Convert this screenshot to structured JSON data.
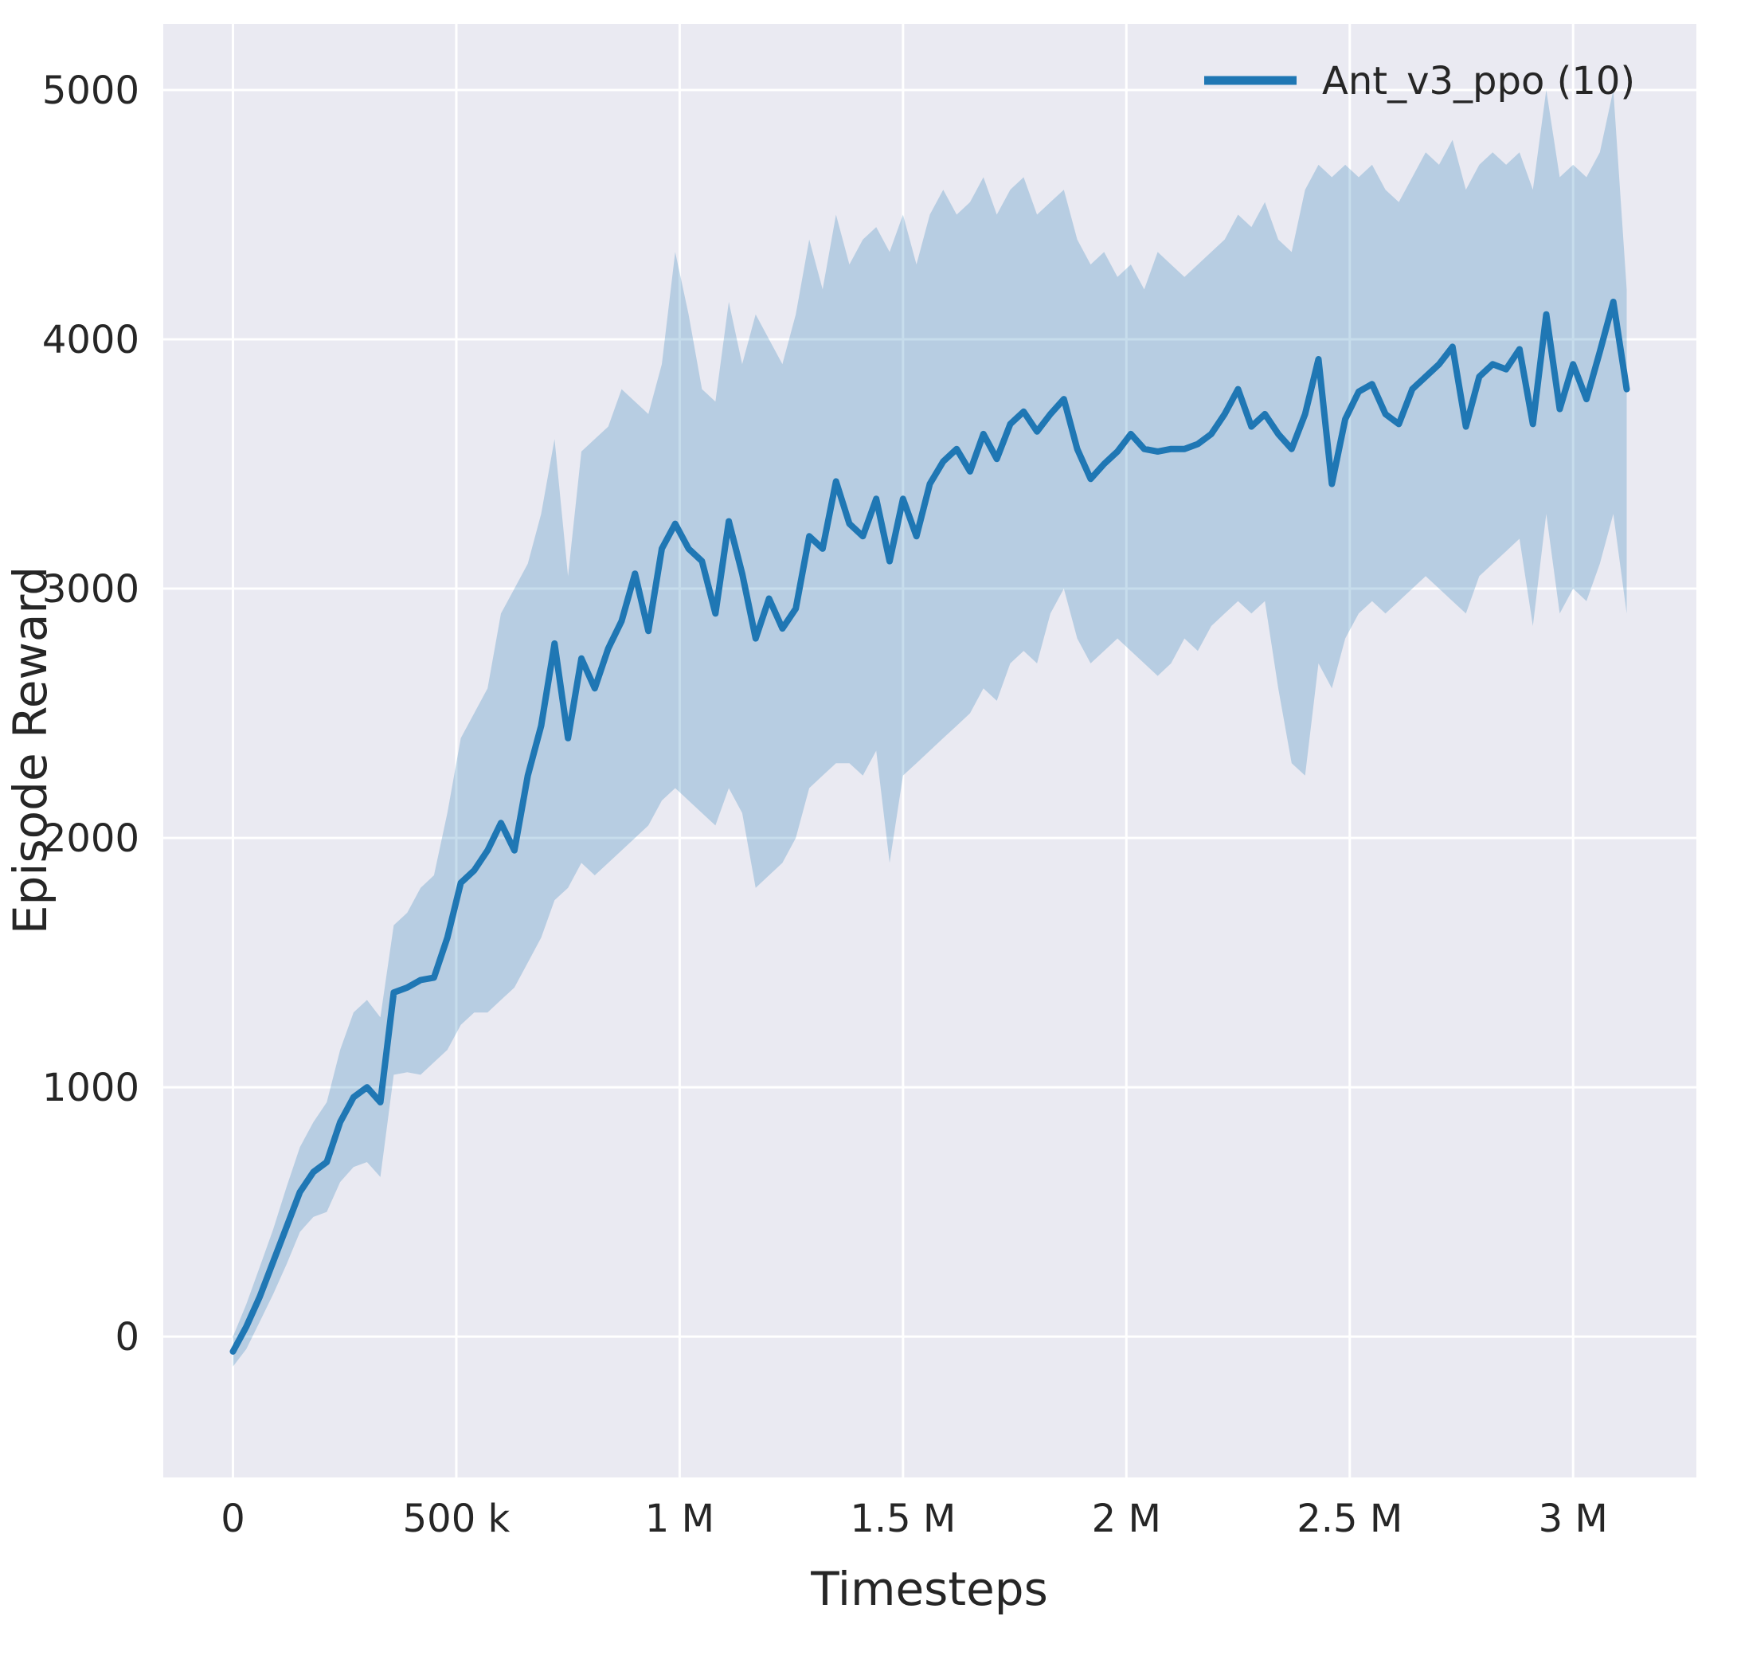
{
  "chart_data": {
    "type": "line",
    "title": "",
    "xlabel": "Timesteps",
    "ylabel": "Episode Reward",
    "grid": true,
    "plot_bg": "#eaeaf2",
    "grid_color": "#ffffff",
    "text_color": "#262626",
    "legend": {
      "position": "upper right",
      "entries": [
        "Ant_v3_ppo (10)"
      ]
    },
    "xlim": [
      -156000,
      3276000
    ],
    "ylim": [
      -565,
      5265
    ],
    "x_ticks": {
      "values": [
        0,
        500000,
        1000000,
        1500000,
        2000000,
        2500000,
        3000000
      ],
      "labels": [
        "0",
        "500 k",
        "1 M",
        "1.5 M",
        "2 M",
        "2.5 M",
        "3 M"
      ]
    },
    "y_ticks": {
      "values": [
        0,
        1000,
        2000,
        3000,
        4000,
        5000
      ],
      "labels": [
        "0",
        "1000",
        "2000",
        "3000",
        "4000",
        "5000"
      ]
    },
    "series": [
      {
        "name": "Ant_v3_ppo (10)",
        "color": "#1f77b4",
        "band_color": "#1f77b4",
        "band_opacity": 0.25,
        "x": [
          0,
          30000,
          60000,
          90000,
          120000,
          150000,
          180000,
          210000,
          240000,
          270000,
          300000,
          330000,
          360000,
          390000,
          420000,
          450000,
          480000,
          510000,
          540000,
          570000,
          600000,
          630000,
          660000,
          690000,
          720000,
          750000,
          780000,
          810000,
          840000,
          870000,
          900000,
          930000,
          960000,
          990000,
          1020000,
          1050000,
          1080000,
          1110000,
          1140000,
          1170000,
          1200000,
          1230000,
          1260000,
          1290000,
          1320000,
          1350000,
          1380000,
          1410000,
          1440000,
          1470000,
          1500000,
          1530000,
          1560000,
          1590000,
          1620000,
          1650000,
          1680000,
          1710000,
          1740000,
          1770000,
          1800000,
          1830000,
          1860000,
          1890000,
          1920000,
          1950000,
          1980000,
          2010000,
          2040000,
          2070000,
          2100000,
          2130000,
          2160000,
          2190000,
          2220000,
          2250000,
          2280000,
          2310000,
          2340000,
          2370000,
          2400000,
          2430000,
          2460000,
          2490000,
          2520000,
          2550000,
          2580000,
          2610000,
          2640000,
          2670000,
          2700000,
          2730000,
          2760000,
          2790000,
          2820000,
          2850000,
          2880000,
          2910000,
          2940000,
          2970000,
          3000000,
          3030000,
          3060000,
          3090000,
          3120000
        ],
        "mean": [
          -60,
          40,
          160,
          300,
          440,
          580,
          660,
          700,
          860,
          960,
          1000,
          940,
          1380,
          1400,
          1430,
          1440,
          1600,
          1820,
          1870,
          1950,
          2060,
          1950,
          2250,
          2450,
          2780,
          2400,
          2720,
          2600,
          2760,
          2870,
          3060,
          2830,
          3160,
          3260,
          3160,
          3110,
          2900,
          3270,
          3060,
          2800,
          2960,
          2840,
          2920,
          3210,
          3160,
          3430,
          3260,
          3210,
          3360,
          3110,
          3360,
          3210,
          3420,
          3510,
          3560,
          3470,
          3620,
          3520,
          3660,
          3710,
          3630,
          3700,
          3760,
          3560,
          3440,
          3500,
          3550,
          3620,
          3560,
          3550,
          3560,
          3560,
          3580,
          3620,
          3700,
          3800,
          3650,
          3700,
          3620,
          3560,
          3700,
          3920,
          3420,
          3680,
          3790,
          3820,
          3700,
          3660,
          3800,
          3850,
          3900,
          3970,
          3650,
          3850,
          3900,
          3880,
          3960,
          3660,
          4100,
          3720,
          3900,
          3760,
          3950,
          4150,
          3800
        ],
        "lower": [
          -120,
          -50,
          60,
          170,
          290,
          420,
          480,
          500,
          620,
          680,
          700,
          640,
          1050,
          1060,
          1050,
          1100,
          1150,
          1250,
          1300,
          1300,
          1350,
          1400,
          1500,
          1600,
          1750,
          1800,
          1900,
          1850,
          1900,
          1950,
          2000,
          2050,
          2150,
          2200,
          2150,
          2100,
          2050,
          2200,
          2100,
          1800,
          1850,
          1900,
          2000,
          2200,
          2250,
          2300,
          2300,
          2250,
          2350,
          1900,
          2250,
          2300,
          2350,
          2400,
          2450,
          2500,
          2600,
          2550,
          2700,
          2750,
          2700,
          2900,
          3000,
          2800,
          2700,
          2750,
          2800,
          2750,
          2700,
          2650,
          2700,
          2800,
          2750,
          2850,
          2900,
          2950,
          2900,
          2950,
          2600,
          2300,
          2250,
          2700,
          2600,
          2800,
          2900,
          2950,
          2900,
          2950,
          3000,
          3050,
          3000,
          2950,
          2900,
          3050,
          3100,
          3150,
          3200,
          2850,
          3300,
          2900,
          3000,
          2950,
          3100,
          3300,
          2900
        ],
        "upper": [
          0,
          130,
          280,
          430,
          600,
          760,
          860,
          940,
          1150,
          1300,
          1350,
          1280,
          1650,
          1700,
          1800,
          1850,
          2100,
          2400,
          2500,
          2600,
          2900,
          3000,
          3100,
          3300,
          3600,
          3050,
          3550,
          3600,
          3650,
          3800,
          3750,
          3700,
          3900,
          4350,
          4100,
          3800,
          3750,
          4150,
          3900,
          4100,
          4000,
          3900,
          4100,
          4400,
          4200,
          4500,
          4300,
          4400,
          4450,
          4350,
          4500,
          4300,
          4500,
          4600,
          4500,
          4550,
          4650,
          4500,
          4600,
          4650,
          4500,
          4550,
          4600,
          4400,
          4300,
          4350,
          4250,
          4300,
          4200,
          4350,
          4300,
          4250,
          4300,
          4350,
          4400,
          4500,
          4450,
          4550,
          4400,
          4350,
          4600,
          4700,
          4650,
          4700,
          4650,
          4700,
          4600,
          4550,
          4650,
          4750,
          4700,
          4800,
          4600,
          4700,
          4750,
          4700,
          4750,
          4600,
          5000,
          4650,
          4700,
          4650,
          4750,
          5000,
          4200
        ]
      }
    ]
  }
}
